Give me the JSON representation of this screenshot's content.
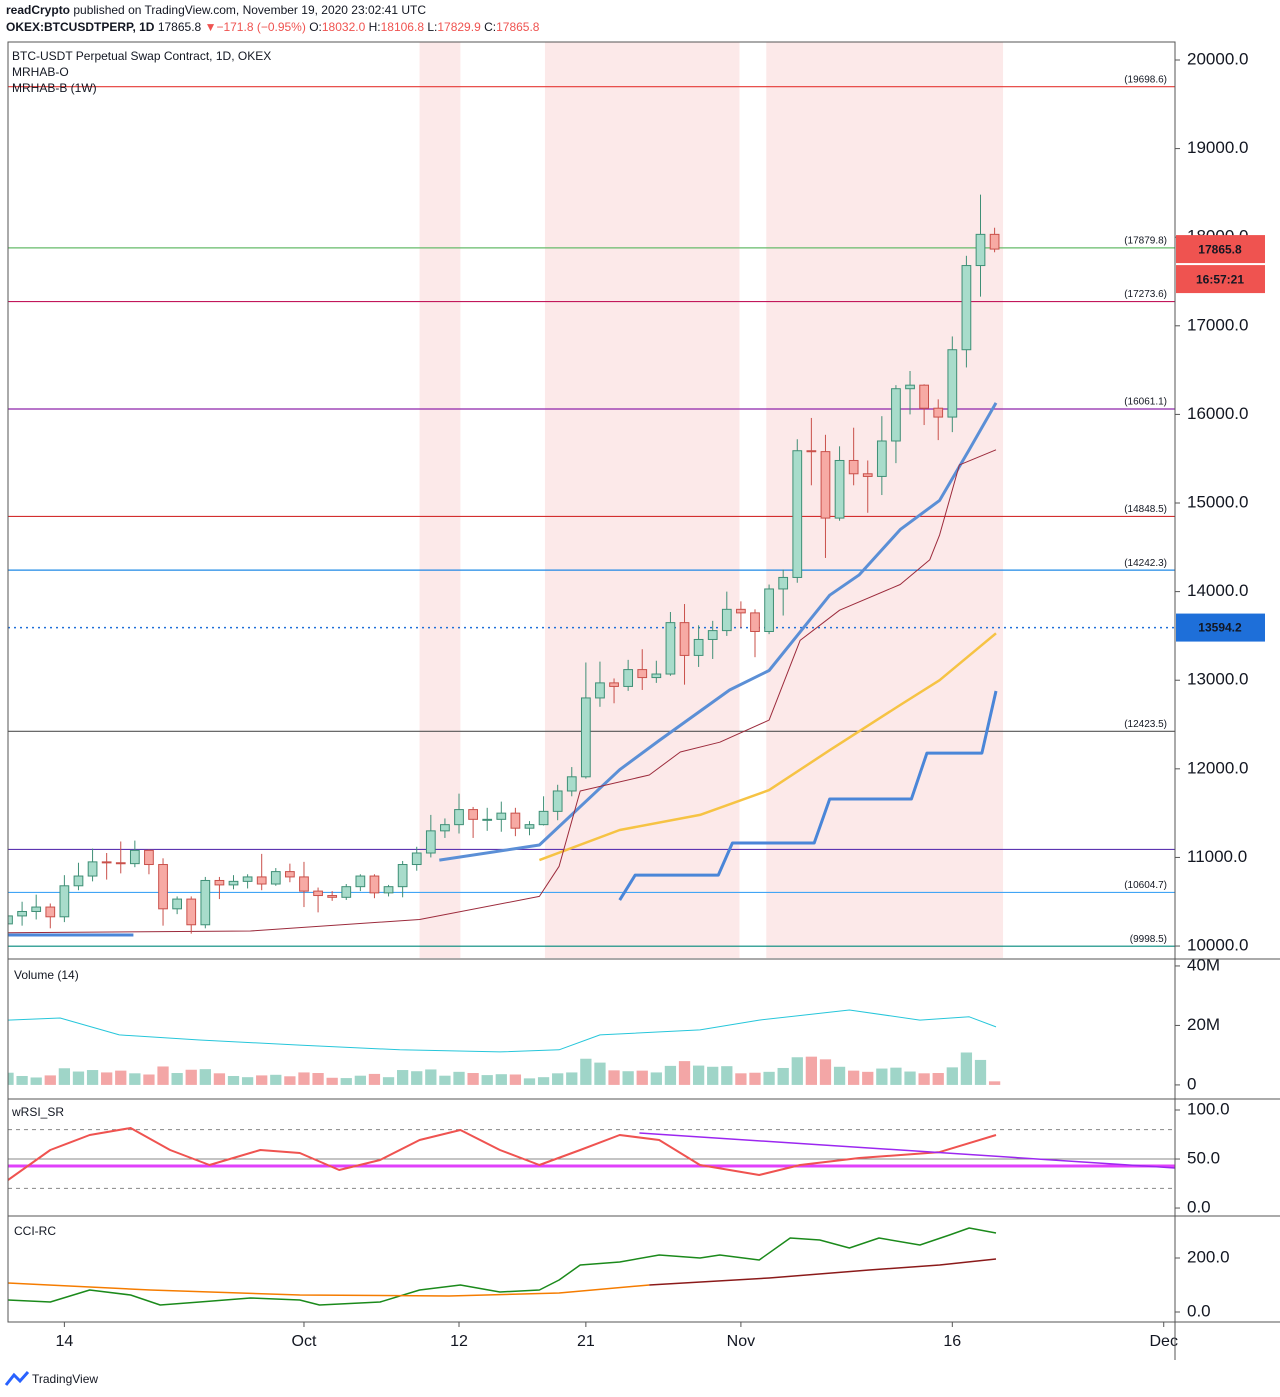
{
  "header": {
    "line1": [
      "readCrypto",
      "published on TradingView.com, November 19, 2020 23:02:41 UTC"
    ],
    "line2": [
      "OKEX:BTCUSDTPERP, 1D",
      "17865.8",
      "▼",
      "−171.8 (−0.95%)",
      "O:",
      "18032.0",
      "H:",
      "18106.8",
      "L:",
      "17829.9",
      "C:",
      "17865.8"
    ]
  },
  "footer": "TradingView",
  "chart_data": [
    {
      "type": "candlestick",
      "title": "BTC-USDT Perpetual Swap Contract, 1D, OKEX",
      "indicators": [
        "MRHAB-O",
        "MRHAB-B (1W)"
      ],
      "x": [
        0,
        1,
        2,
        3,
        4,
        5,
        6,
        7,
        8,
        9,
        10,
        11,
        12,
        13,
        14,
        15,
        16,
        17,
        18,
        19,
        20,
        21,
        22,
        23,
        24,
        25,
        26,
        27,
        28,
        29,
        30,
        31,
        32,
        33,
        34,
        35,
        36,
        37,
        38,
        39,
        40,
        41,
        42,
        43,
        44,
        45,
        46,
        47,
        48,
        49,
        50,
        51,
        52,
        53,
        54,
        55,
        56,
        57,
        58,
        59,
        60,
        61,
        62,
        63,
        64,
        65,
        66,
        67,
        68,
        69,
        70
      ],
      "open": [
        10250,
        10340,
        10390,
        10440,
        10330,
        10680,
        10790,
        10950,
        10940,
        10930,
        11080,
        10920,
        10420,
        10530,
        10240,
        10740,
        10690,
        10730,
        10780,
        10700,
        10840,
        10780,
        10620,
        10570,
        10550,
        10670,
        10790,
        10600,
        10670,
        10920,
        11050,
        11300,
        11370,
        11540,
        11430,
        11430,
        11500,
        11330,
        11370,
        11520,
        11750,
        11910,
        12800,
        12970,
        12930,
        13120,
        13030,
        13070,
        13650,
        13280,
        13460,
        13560,
        13800,
        13760,
        13550,
        14030,
        14160,
        15590,
        15580,
        14830,
        15480,
        15330,
        15300,
        15700,
        16290,
        16330,
        16070,
        15970,
        16730,
        17680,
        18032
      ],
      "high": [
        10480,
        10500,
        10580,
        10480,
        10800,
        10940,
        11100,
        11050,
        11180,
        11190,
        11090,
        10990,
        10560,
        10560,
        10780,
        10780,
        10800,
        10810,
        11040,
        10880,
        10930,
        10950,
        10660,
        10620,
        10700,
        10810,
        10810,
        10690,
        10960,
        11120,
        11480,
        11440,
        11720,
        11570,
        11560,
        11630,
        11560,
        11410,
        11690,
        11820,
        12020,
        13200,
        13210,
        13020,
        13230,
        13350,
        13220,
        13770,
        13860,
        13620,
        13670,
        14000,
        13890,
        13800,
        14080,
        14250,
        15720,
        15960,
        15770,
        15640,
        15850,
        15480,
        15980,
        16330,
        16490,
        16340,
        16170,
        16880,
        17790,
        18480,
        18106.8
      ],
      "low": [
        10200,
        10230,
        10300,
        10200,
        10270,
        10630,
        10730,
        10750,
        10820,
        10890,
        10810,
        10230,
        10360,
        10140,
        10200,
        10530,
        10640,
        10650,
        10630,
        10680,
        10720,
        10440,
        10380,
        10510,
        10520,
        10620,
        10540,
        10560,
        10550,
        10850,
        11000,
        11220,
        11270,
        11220,
        11300,
        11290,
        11240,
        11250,
        11360,
        11420,
        11690,
        11890,
        12700,
        12740,
        12880,
        12890,
        12970,
        13050,
        12950,
        13150,
        13240,
        13500,
        13590,
        13260,
        13520,
        13730,
        14100,
        15200,
        14380,
        14800,
        15200,
        14890,
        15090,
        15450,
        16000,
        15880,
        15710,
        15800,
        16530,
        17330,
        17829.9
      ],
      "close": [
        10340,
        10390,
        10440,
        10330,
        10680,
        10790,
        10950,
        10940,
        10930,
        11080,
        10920,
        10420,
        10530,
        10240,
        10740,
        10690,
        10730,
        10780,
        10700,
        10840,
        10780,
        10620,
        10570,
        10550,
        10670,
        10790,
        10600,
        10670,
        10920,
        11050,
        11300,
        11370,
        11540,
        11430,
        11430,
        11500,
        11330,
        11370,
        11520,
        11750,
        11910,
        12800,
        12970,
        12930,
        13120,
        13030,
        13070,
        13650,
        13280,
        13460,
        13560,
        13800,
        13760,
        13550,
        14030,
        14160,
        15590,
        15580,
        14830,
        15480,
        15330,
        15300,
        15700,
        16290,
        16330,
        16070,
        15970,
        16730,
        17680,
        18032,
        17865.8
      ],
      "up_color": "#a8dccb",
      "up_border": "#3f8f76",
      "down_color": "#f7aaa4",
      "down_border": "#c9504a",
      "xlim": [
        0,
        82.8
      ],
      "xticks": [
        {
          "value": 4,
          "label": "14"
        },
        {
          "value": 21,
          "label": "Oct"
        },
        {
          "value": 32,
          "label": "12"
        },
        {
          "value": 41,
          "label": "21"
        },
        {
          "value": 52,
          "label": "Nov"
        },
        {
          "value": 67,
          "label": "16"
        },
        {
          "value": 82,
          "label": "Dec"
        }
      ],
      "ylim": [
        9865,
        20203
      ],
      "yticks": [
        {
          "value": 10000,
          "label": "10000.0"
        },
        {
          "value": 11000,
          "label": "11000.0"
        },
        {
          "value": 12000,
          "label": "12000.0"
        },
        {
          "value": 13000,
          "label": "13000.0"
        },
        {
          "value": 14000,
          "label": "14000.0"
        },
        {
          "value": 15000,
          "label": "15000.0"
        },
        {
          "value": 16000,
          "label": "16000.0"
        },
        {
          "value": 17000,
          "label": "17000.0"
        },
        {
          "value": 18000,
          "label": "18000.0"
        },
        {
          "value": 19000,
          "label": "19000.0"
        },
        {
          "value": 20000,
          "label": "20000.0"
        }
      ],
      "grid": false,
      "highlight_ranges": [
        [
          29.2,
          32.1
        ],
        [
          38.1,
          51.9
        ],
        [
          53.8,
          70.6
        ]
      ],
      "highlight_color": "#fbe3e3",
      "levels": [
        {
          "value": 19698.6,
          "label": "(19698.6)",
          "color": "#e53935"
        },
        {
          "value": 17879.8,
          "label": "(17879.8)",
          "color": "#66bb6a"
        },
        {
          "value": 17273.6,
          "label": "(17273.6)",
          "color": "#c2185b"
        },
        {
          "value": 16061.1,
          "label": "(16061.1)",
          "color": "#8e24aa"
        },
        {
          "value": 14848.5,
          "label": "(14848.5)",
          "color": "#d32f2f"
        },
        {
          "value": 14242.3,
          "label": "(14242.3)",
          "color": "#1e88e5"
        },
        {
          "value": 12423.5,
          "label": "(12423.5)",
          "color": "#555555"
        },
        {
          "value": 11090,
          "color": "#5e35b1"
        },
        {
          "value": 10604.7,
          "label": "(10604.7)",
          "color": "#42a5f5"
        },
        {
          "value": 9998.5,
          "label": "(9998.5)",
          "color": "#00897b"
        }
      ],
      "marked_level": {
        "value": 13594.2,
        "color": "#1e6fd9",
        "style": "dotted"
      },
      "price_color": "#ef5350",
      "countdown": "16:57:21",
      "series": [
        {
          "color": "#5b8fd6",
          "width": 3,
          "x": [
            30.6,
            37.7,
            43.4,
            46.2,
            51.2,
            54.0,
            58.3,
            60.4,
            63.3,
            66.1,
            68.2,
            70.1
          ],
          "values": [
            10970,
            11140,
            11990,
            12320,
            12890,
            13110,
            13960,
            14190,
            14700,
            15030,
            15600,
            16130
          ]
        },
        {
          "color": "#f6c344",
          "width": 2.5,
          "x": [
            37.7,
            43.4,
            49.1,
            54.0,
            58.3,
            63.3,
            66.1,
            70.1
          ],
          "values": [
            10970,
            11310,
            11480,
            11760,
            12210,
            12720,
            13000,
            13530
          ]
        },
        {
          "color": "#4a86d8",
          "width": 3,
          "x": [
            0,
            8.9,
            null,
            43.4,
            44.5,
            50.4,
            51.4,
            57.2,
            58.3,
            64.1,
            65.2,
            69.1,
            70.1
          ],
          "values": [
            10125,
            10125,
            null,
            10519,
            10801,
            10801,
            11163,
            11163,
            11659,
            11659,
            12178,
            12178,
            12878
          ]
        },
        {
          "color": "#9c2b3c",
          "width": 1,
          "x": [
            0,
            17.2,
            29.2,
            37.7,
            39.1,
            40.6,
            45.5,
            47.7,
            50.5,
            54.0,
            56.2,
            59.0,
            63.3,
            65.4,
            66.1,
            67.5,
            70.1
          ],
          "values": [
            10150,
            10170,
            10300,
            10560,
            10900,
            11750,
            11930,
            12190,
            12300,
            12550,
            13450,
            13790,
            14080,
            14360,
            14640,
            15430,
            15600
          ]
        }
      ]
    },
    {
      "type": "bar",
      "title": "Volume (14)",
      "values": [
        4100000,
        3000000,
        2500000,
        3200000,
        5600000,
        4500000,
        5000000,
        4200000,
        4800000,
        3900000,
        3500000,
        6200000,
        4000000,
        5100000,
        5300000,
        3900000,
        3000000,
        2600000,
        3200000,
        3400000,
        2900000,
        4200000,
        4000000,
        2400000,
        2300000,
        3100000,
        3700000,
        2600000,
        5000000,
        4600000,
        5200000,
        3100000,
        4400000,
        4000000,
        3300000,
        3600000,
        3500000,
        2200000,
        2600000,
        3900000,
        4200000,
        8800000,
        7500000,
        4900000,
        4600000,
        4800000,
        4200000,
        6400000,
        8000000,
        6500000,
        6100000,
        6300000,
        3900000,
        4100000,
        4400000,
        5700000,
        9300000,
        9500000,
        8600000,
        6100000,
        4800000,
        4400000,
        5500000,
        5800000,
        4500000,
        3900000,
        4000000,
        5900000,
        10900000,
        8400000,
        1200000
      ],
      "up_color": "#9fd5c8",
      "down_color": "#f3a6a6",
      "ylim": [
        -4400000,
        42000000
      ],
      "yticks": [
        0,
        {
          "value": 20000000,
          "label": "20M"
        },
        {
          "value": 40000000,
          "label": "40M"
        }
      ],
      "series": [
        {
          "color": "#26c6da",
          "width": 1,
          "x": [
            0,
            3.7,
            7.9,
            13.6,
            20.7,
            27.8,
            34.9,
            39.1,
            42.0,
            49.1,
            53.3,
            59.7,
            64.7,
            68.2,
            70.1
          ],
          "values": [
            21800000,
            22500000,
            16800000,
            15100000,
            13400000,
            11800000,
            11100000,
            11800000,
            16800000,
            18500000,
            21800000,
            25200000,
            21800000,
            22900000,
            19500000
          ]
        }
      ]
    },
    {
      "type": "line",
      "title": "wRSI_SR",
      "ylim": [
        -7.1,
        110.2
      ],
      "yticks": [
        {
          "value": 0,
          "label": "0.0"
        },
        {
          "value": 50,
          "label": "50.0"
        },
        {
          "value": 100,
          "label": "100.0"
        }
      ],
      "levels": [
        {
          "value": 80,
          "color": "#888888",
          "style": "dashed"
        },
        {
          "value": 50,
          "color": "#888888",
          "style": "solid"
        },
        {
          "value": 20,
          "color": "#888888",
          "style": "dashed"
        },
        {
          "value": 42.9,
          "color": "#e040fb",
          "style": "thick"
        }
      ],
      "series": [
        {
          "color": "#ef5350",
          "width": 2,
          "x": [
            0,
            3.0,
            5.8,
            8.7,
            11.5,
            14.3,
            17.9,
            20.7,
            23.5,
            26.4,
            29.2,
            32.1,
            34.9,
            37.7,
            40.6,
            43.4,
            46.2,
            49.1,
            53.3,
            56.2,
            60.4,
            66.1,
            70.1
          ],
          "values": [
            28.6,
            59.2,
            74.5,
            81.6,
            59.2,
            43.9,
            59.2,
            56.1,
            38.8,
            49.0,
            69.4,
            79.6,
            59.2,
            43.9,
            59.2,
            74.5,
            69.4,
            43.9,
            33.7,
            43.9,
            51.0,
            57.1,
            74.5
          ]
        },
        {
          "color": "#9c27f0",
          "width": 1.5,
          "x": [
            44.8,
            82.8
          ],
          "values": [
            76.5,
            40.8
          ]
        }
      ]
    },
    {
      "type": "line",
      "title": "CCI-RC",
      "ylim": [
        -37,
        351.8
      ],
      "yticks": [
        {
          "value": 0,
          "label": "0.0"
        },
        {
          "value": 200,
          "label": "200.0"
        }
      ],
      "series": [
        {
          "color": "#1b8a1b",
          "width": 1.5,
          "x": [
            0,
            3.0,
            5.8,
            8.7,
            10.8,
            13.6,
            17.2,
            20.7,
            22.1,
            26.4,
            29.2,
            32.1,
            34.9,
            37.7,
            39.1,
            40.6,
            43.4,
            46.2,
            49.1,
            50.5,
            53.3,
            55.5,
            57.6,
            59.7,
            61.8,
            64.7,
            66.8,
            68.2,
            70.1
          ],
          "values": [
            44.4,
            37.0,
            81.5,
            63.0,
            25.9,
            37.0,
            51.9,
            44.4,
            25.9,
            37.0,
            81.5,
            100,
            74.1,
            81.5,
            118.5,
            174.1,
            185.2,
            211.1,
            200,
            211.1,
            192.6,
            274.1,
            266.7,
            237.0,
            274.1,
            248.1,
            285.2,
            311.1,
            292.6
          ]
        },
        {
          "color": "#f57c00",
          "width": 1.5,
          "x": [
            0,
            10.1,
            20.7,
            31.3,
            39.1,
            45.5
          ],
          "values": [
            107.4,
            81.5,
            63.0,
            59.3,
            70.4,
            100
          ]
        },
        {
          "color": "#8b1a1a",
          "width": 1.5,
          "x": [
            45.5,
            54.0,
            61.1,
            66.1,
            70.1
          ],
          "values": [
            100,
            125.9,
            155.6,
            174.1,
            196.3
          ]
        }
      ]
    }
  ]
}
